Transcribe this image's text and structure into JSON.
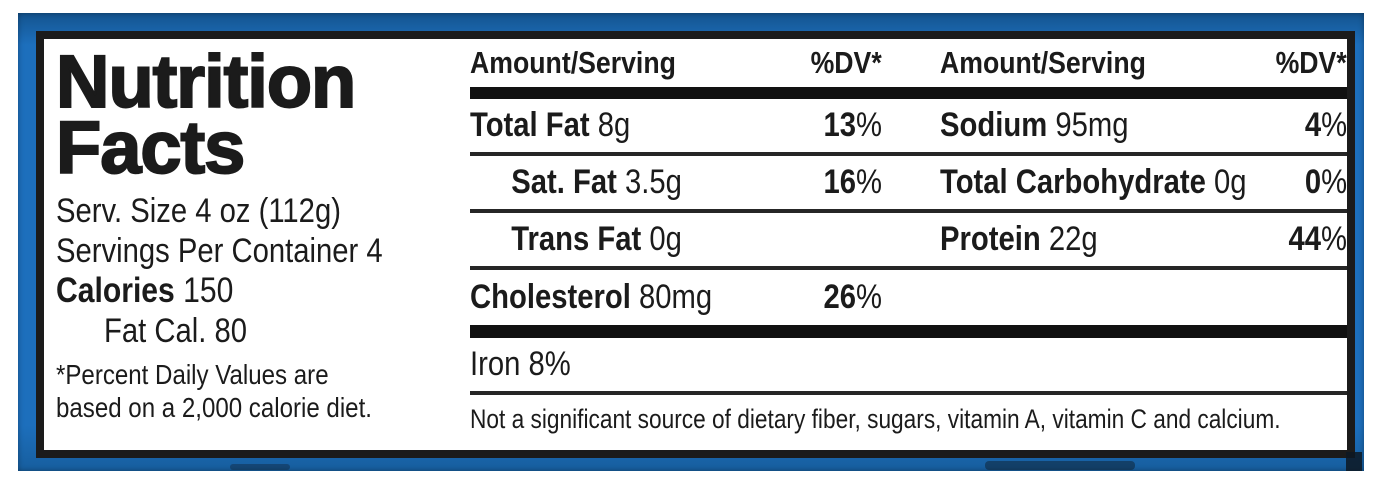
{
  "colors": {
    "frame_blue": "#1d6fbc",
    "border_black": "#1b1b1b",
    "label_bg": "#ffffff",
    "text": "#1b1b1b"
  },
  "panel": {
    "title_line1": "Nutrition",
    "title_line2": "Facts",
    "serving_size": "Serv. Size 4 oz (112g)",
    "servings_per_container": "Servings Per Container 4",
    "calories_label": "Calories",
    "calories_value": "150",
    "fat_calories": "Fat Cal. 80",
    "footnote_line1": "*Percent Daily Values are",
    "footnote_line2": "based on a 2,000 calorie diet."
  },
  "table": {
    "left_header": {
      "amount": "Amount/Serving",
      "dv": "%DV*"
    },
    "right_header": {
      "amount": "Amount/Serving",
      "dv": "%DV*"
    },
    "rows": [
      {
        "left": {
          "name": "Total Fat",
          "value": "8g",
          "dv_num": "13",
          "dv_sign": "%"
        },
        "right": {
          "name": "Sodium",
          "value": "95mg",
          "dv_num": "4",
          "dv_sign": "%"
        }
      },
      {
        "left": {
          "name": "Sat. Fat",
          "value": "3.5g",
          "dv_num": "16",
          "dv_sign": "%"
        },
        "right": {
          "name": "Total Carbohydrate",
          "value": "0g",
          "dv_num": "0",
          "dv_sign": "%"
        }
      },
      {
        "left": {
          "name": "Trans Fat",
          "value": "0g",
          "dv_num": "",
          "dv_sign": ""
        },
        "right": {
          "name": "Protein",
          "value": "22g",
          "dv_num": "44",
          "dv_sign": "%"
        }
      },
      {
        "left": {
          "name": "Cholesterol",
          "value": "80mg",
          "dv_num": "26",
          "dv_sign": "%"
        },
        "right": {
          "name": "",
          "value": "",
          "dv_num": "",
          "dv_sign": ""
        }
      }
    ],
    "iron_row": "Iron 8%",
    "disclaimer": "Not a significant source of dietary fiber, sugars, vitamin A, vitamin C and calcium."
  }
}
